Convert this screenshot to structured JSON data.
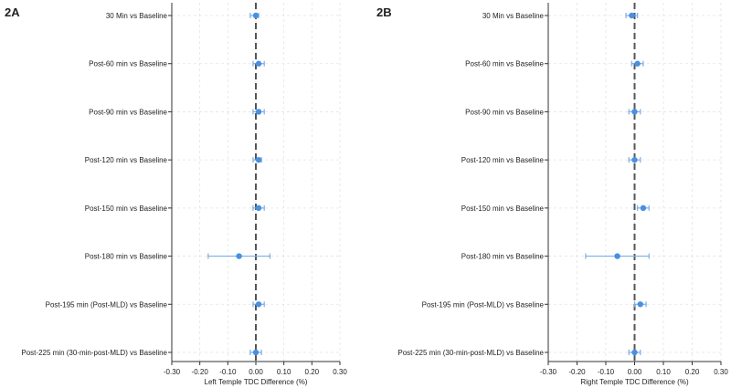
{
  "panels": [
    {
      "label": "2A"
    },
    {
      "label": "2B"
    }
  ],
  "colors": {
    "point": "#4a90e2",
    "errorbar": "#7aaee6",
    "grid": "#e4e4e4",
    "axis": "#333333",
    "zero_line": "#555555"
  },
  "chart_data": [
    {
      "type": "scatter",
      "subtype": "forest-plot",
      "panel": "2A",
      "xlabel": "Left Temple TDC Difference (%)",
      "ylabel": "",
      "xlim": [
        -0.3,
        0.3
      ],
      "xticks": [
        "-0.30",
        "-0.20",
        "-0.10",
        "0.00",
        "0.10",
        "0.20",
        "0.30"
      ],
      "grid": true,
      "reference_line": 0,
      "categories": [
        "30 Min vs Baseline",
        "Post-60 min vs Baseline",
        "Post-90 min vs Baseline",
        "Post-120 min vs Baseline",
        "Post-150 min vs Baseline",
        "Post-180 min vs Baseline",
        "Post-195 min (Post-MLD) vs Baseline",
        "Post-225 min (30-min-post-MLD) vs Baseline"
      ],
      "estimates": [
        0.0,
        0.01,
        0.01,
        0.01,
        0.01,
        -0.06,
        0.01,
        0.0
      ],
      "ci_low": [
        -0.02,
        -0.01,
        -0.01,
        -0.01,
        -0.01,
        -0.17,
        -0.01,
        -0.02
      ],
      "ci_high": [
        0.01,
        0.03,
        0.03,
        0.02,
        0.03,
        0.05,
        0.03,
        0.02
      ]
    },
    {
      "type": "scatter",
      "subtype": "forest-plot",
      "panel": "2B",
      "xlabel": "Right Temple TDC Difference (%)",
      "ylabel": "",
      "xlim": [
        -0.3,
        0.3
      ],
      "xticks": [
        "-0.30",
        "-0.20",
        "-0.10",
        "0.00",
        "0.10",
        "0.20",
        "0.30"
      ],
      "grid": true,
      "reference_line": 0,
      "categories": [
        "30 Min vs Baseline",
        "Post-60 min vs Baseline",
        "Post-90 min vs Baseline",
        "Post-120 min vs Baseline",
        "Post-150 min vs Baseline",
        "Post-180 min vs Baseline",
        "Post-195 min (Post-MLD) vs Baseline",
        "Post-225 min (30-min-post-MLD) vs Baseline"
      ],
      "estimates": [
        -0.01,
        0.01,
        0.0,
        0.0,
        0.03,
        -0.06,
        0.02,
        0.0
      ],
      "ci_low": [
        -0.03,
        -0.01,
        -0.02,
        -0.02,
        0.01,
        -0.17,
        0.0,
        -0.02
      ],
      "ci_high": [
        0.01,
        0.03,
        0.02,
        0.02,
        0.05,
        0.05,
        0.04,
        0.02
      ]
    }
  ]
}
